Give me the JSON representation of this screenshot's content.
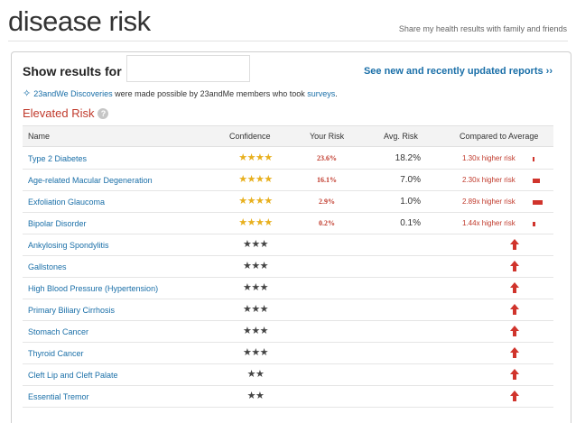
{
  "header": {
    "title": "disease risk",
    "share_link": "Share my health results with family and friends"
  },
  "controls": {
    "show_results_label": "Show results for",
    "user_select_value": "",
    "see_new_link": "See new and recently updated reports ››"
  },
  "discoveries": {
    "link_text": "23andWe Discoveries",
    "middle_text": " were made possible by 23andMe members who took ",
    "surveys_link": "surveys",
    "end_text": "."
  },
  "section": {
    "title": "Elevated Risk",
    "help_icon": "?"
  },
  "table": {
    "headers": {
      "name": "Name",
      "confidence": "Confidence",
      "your_risk": "Your Risk",
      "avg_risk": "Avg. Risk",
      "compared": "Compared to Average"
    },
    "rows": [
      {
        "name": "Type 2 Diabetes",
        "confidence": "★★★★",
        "stars": 4,
        "your_risk": "23.6%",
        "avg_risk": "18.2%",
        "compared": "1.30x higher risk",
        "multiplier": 1.3
      },
      {
        "name": "Age-related Macular Degeneration",
        "confidence": "★★★★",
        "stars": 4,
        "your_risk": "16.1%",
        "avg_risk": "7.0%",
        "compared": "2.30x higher risk",
        "multiplier": 2.3
      },
      {
        "name": "Exfoliation Glaucoma",
        "confidence": "★★★★",
        "stars": 4,
        "your_risk": "2.9%",
        "avg_risk": "1.0%",
        "compared": "2.89x higher risk",
        "multiplier": 2.89
      },
      {
        "name": "Bipolar Disorder",
        "confidence": "★★★★",
        "stars": 4,
        "your_risk": "0.2%",
        "avg_risk": "0.1%",
        "compared": "1.44x higher risk",
        "multiplier": 1.44
      },
      {
        "name": "Ankylosing Spondylitis",
        "confidence": "★★★",
        "stars": 3,
        "your_risk": "",
        "avg_risk": "",
        "compared": "",
        "multiplier": null
      },
      {
        "name": "Gallstones",
        "confidence": "★★★",
        "stars": 3,
        "your_risk": "",
        "avg_risk": "",
        "compared": "",
        "multiplier": null
      },
      {
        "name": "High Blood Pressure (Hypertension)",
        "confidence": "★★★",
        "stars": 3,
        "your_risk": "",
        "avg_risk": "",
        "compared": "",
        "multiplier": null
      },
      {
        "name": "Primary Biliary Cirrhosis",
        "confidence": "★★★",
        "stars": 3,
        "your_risk": "",
        "avg_risk": "",
        "compared": "",
        "multiplier": null
      },
      {
        "name": "Stomach Cancer",
        "confidence": "★★★",
        "stars": 3,
        "your_risk": "",
        "avg_risk": "",
        "compared": "",
        "multiplier": null
      },
      {
        "name": "Thyroid Cancer",
        "confidence": "★★★",
        "stars": 3,
        "your_risk": "",
        "avg_risk": "",
        "compared": "",
        "multiplier": null
      },
      {
        "name": "Cleft Lip and Cleft Palate",
        "confidence": "★★",
        "stars": 2,
        "your_risk": "",
        "avg_risk": "",
        "compared": "",
        "multiplier": null
      },
      {
        "name": "Essential Tremor",
        "confidence": "★★",
        "stars": 2,
        "your_risk": "",
        "avg_risk": "",
        "compared": "",
        "multiplier": null
      }
    ]
  },
  "colors": {
    "link": "#1a6fa8",
    "elevated_red": "#c0392b",
    "star_gold": "#e8b01e",
    "star_dark": "#444444",
    "risk_bar": "#d0342c"
  },
  "icons": {
    "discoveries": "sparkle-icon",
    "help": "help-icon",
    "elevated": "up-arrow-icon"
  }
}
